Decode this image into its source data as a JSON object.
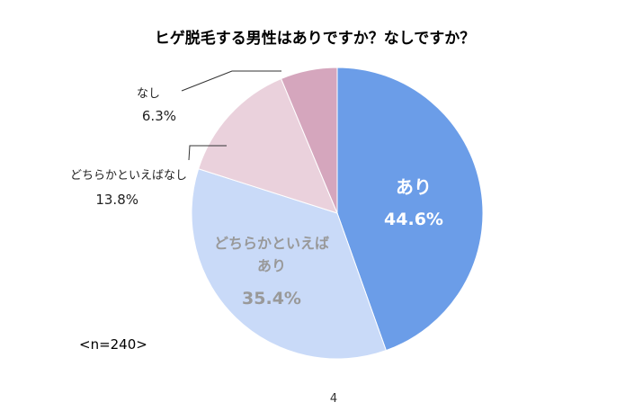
{
  "chart_data": {
    "type": "pie",
    "title": "ヒゲ脱毛する男性はありですか？なしですか？",
    "slices": [
      {
        "label": "あり",
        "value": 44.6,
        "display": "44.6%",
        "color": "#6b9de8",
        "label_color": "#ffffff",
        "label_place": "inside"
      },
      {
        "label": "どちらかといえば\nあり",
        "value": 35.4,
        "display": "35.4%",
        "color": "#c9daf8",
        "label_color": "#999999",
        "label_place": "inside"
      },
      {
        "label": "どちらかといえばなし",
        "value": 13.8,
        "display": "13.8%",
        "color": "#ead1dc",
        "label_color": "#222222",
        "label_place": "outside"
      },
      {
        "label": "なし",
        "value": 6.3,
        "display": "6.3%",
        "color": "#d5a6bd",
        "label_color": "#222222",
        "label_place": "outside"
      }
    ],
    "start_angle_deg": 0,
    "direction": "clockwise"
  },
  "sample_note": "<n=240>",
  "page_number": "4"
}
